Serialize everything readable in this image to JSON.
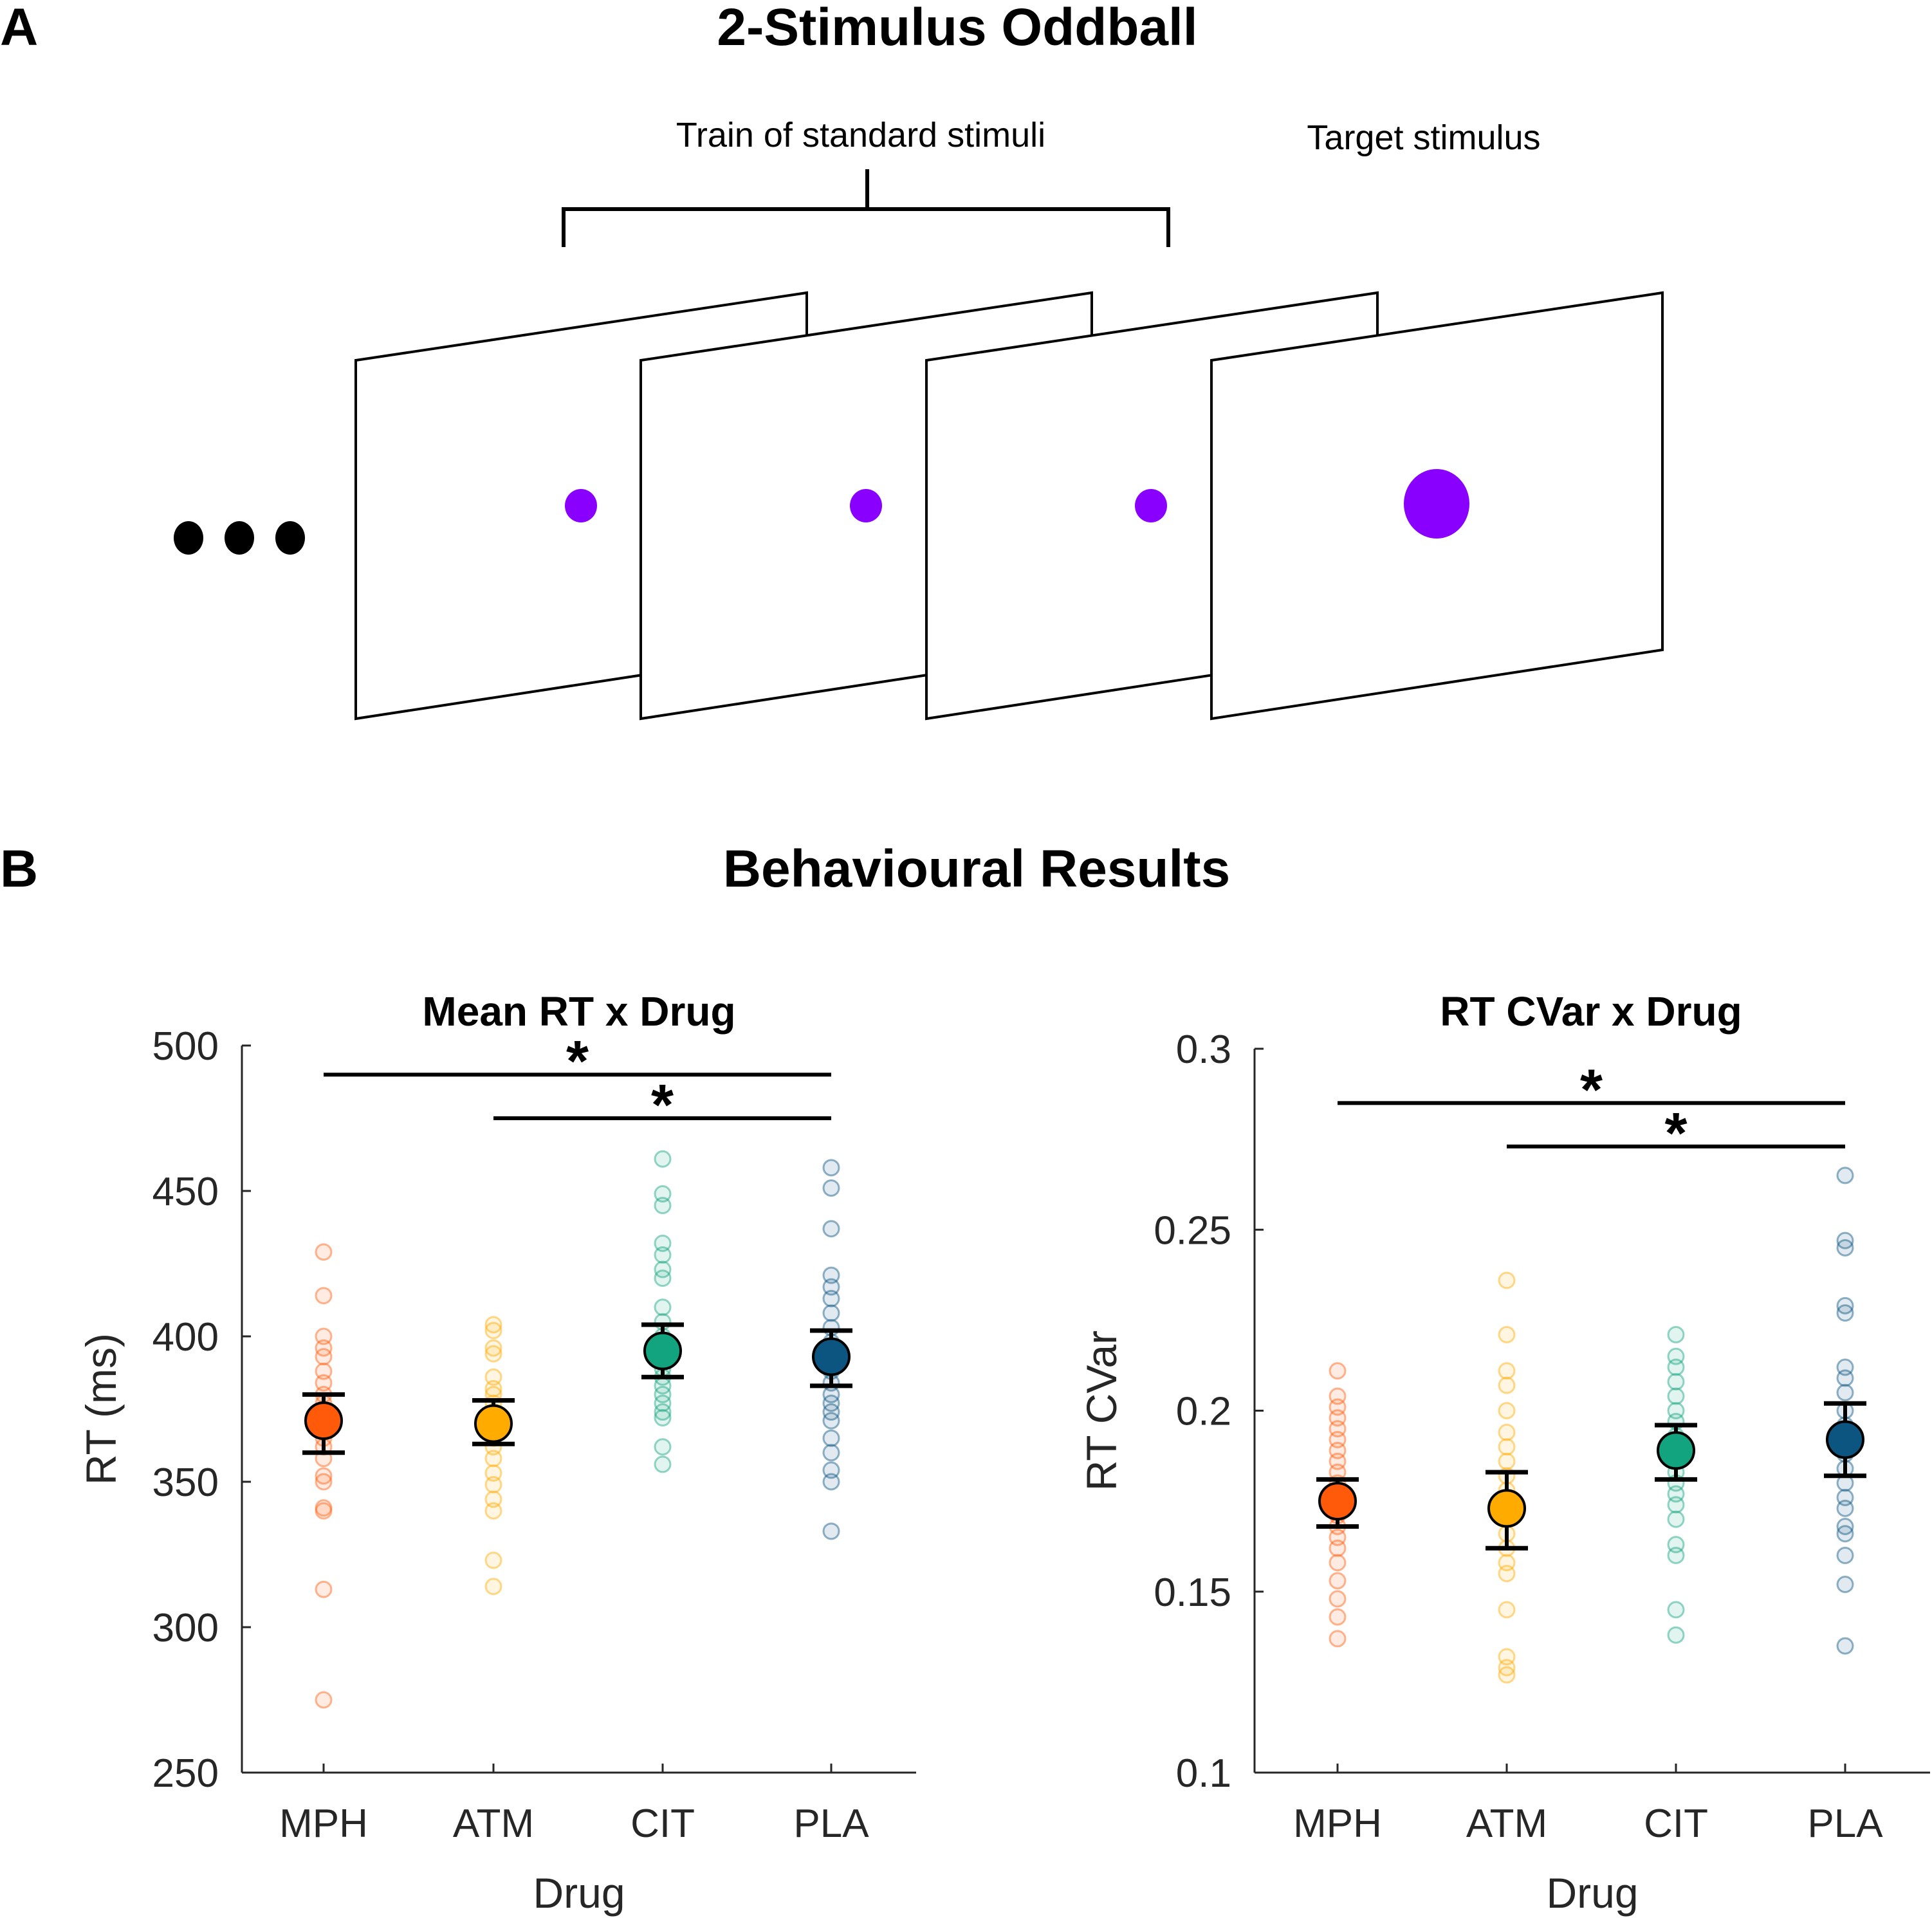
{
  "panel_a": {
    "letter": "A",
    "title": "2-Stimulus Oddball",
    "train_label": "Train of standard stimuli",
    "target_label": "Target stimulus",
    "stimulus_color": "#8a00ff"
  },
  "panel_b": {
    "letter": "B",
    "title": "Behavioural Results"
  },
  "chart_data": [
    {
      "type": "scatter",
      "title": "Mean RT x Drug",
      "xlabel": "Drug",
      "ylabel": "RT (ms)",
      "categories": [
        "MPH",
        "ATM",
        "CIT",
        "PLA"
      ],
      "ylim": [
        250,
        500
      ],
      "yticks": [
        250,
        300,
        350,
        400,
        450,
        500
      ],
      "colors": [
        "#ff5a0a",
        "#ffab00",
        "#12a37f",
        "#0b5580"
      ],
      "means": [
        371,
        370,
        395,
        393
      ],
      "error_bars": [
        [
          360,
          380
        ],
        [
          363,
          378
        ],
        [
          386,
          404
        ],
        [
          383,
          402
        ]
      ],
      "points": [
        [
          429,
          414,
          400,
          396,
          393,
          388,
          384,
          380,
          377,
          374,
          371,
          368,
          365,
          362,
          358,
          352,
          350,
          341,
          340,
          313,
          275
        ],
        [
          404,
          402,
          396,
          394,
          386,
          382,
          380,
          377,
          374,
          371,
          368,
          365,
          362,
          358,
          353,
          349,
          344,
          340,
          323,
          314
        ],
        [
          461,
          449,
          445,
          432,
          428,
          423,
          420,
          410,
          405,
          400,
          396,
          392,
          389,
          386,
          383,
          380,
          377,
          374,
          372,
          362,
          356
        ],
        [
          458,
          451,
          437,
          421,
          417,
          413,
          408,
          403,
          398,
          392,
          388,
          384,
          380,
          377,
          374,
          371,
          365,
          360,
          354,
          350,
          333
        ]
      ],
      "significance": [
        {
          "from": "MPH",
          "to": "PLA",
          "y": 490,
          "label": "*"
        },
        {
          "from": "ATM",
          "to": "PLA",
          "y": 475,
          "label": "*"
        }
      ]
    },
    {
      "type": "scatter",
      "title": "RT CVar x Drug",
      "xlabel": "Drug",
      "ylabel": "RT CVar",
      "categories": [
        "MPH",
        "ATM",
        "CIT",
        "PLA"
      ],
      "ylim": [
        0.1,
        0.3
      ],
      "yticks": [
        0.1,
        0.15,
        0.2,
        0.25,
        0.3
      ],
      "ytick_labels": [
        "0.1",
        "0.15",
        "0.2",
        "0.25",
        "0.3"
      ],
      "colors": [
        "#ff5a0a",
        "#ffab00",
        "#12a37f",
        "#0b5580"
      ],
      "means": [
        0.175,
        0.173,
        0.189,
        0.192
      ],
      "error_bars": [
        [
          0.168,
          0.181
        ],
        [
          0.162,
          0.183
        ],
        [
          0.181,
          0.196
        ],
        [
          0.182,
          0.202
        ]
      ],
      "points": [
        [
          0.211,
          0.204,
          0.201,
          0.198,
          0.195,
          0.192,
          0.189,
          0.186,
          0.183,
          0.18,
          0.177,
          0.174,
          0.171,
          0.168,
          0.165,
          0.162,
          0.158,
          0.153,
          0.148,
          0.143,
          0.137
        ],
        [
          0.236,
          0.221,
          0.211,
          0.207,
          0.2,
          0.194,
          0.19,
          0.186,
          0.182,
          0.178,
          0.174,
          0.17,
          0.166,
          0.162,
          0.158,
          0.155,
          0.145,
          0.132,
          0.129,
          0.127
        ],
        [
          0.221,
          0.215,
          0.212,
          0.208,
          0.204,
          0.2,
          0.197,
          0.193,
          0.19,
          0.186,
          0.183,
          0.18,
          0.177,
          0.174,
          0.17,
          0.163,
          0.16,
          0.145,
          0.138
        ],
        [
          0.265,
          0.247,
          0.245,
          0.229,
          0.227,
          0.212,
          0.209,
          0.205,
          0.2,
          0.196,
          0.192,
          0.188,
          0.184,
          0.18,
          0.176,
          0.173,
          0.168,
          0.166,
          0.16,
          0.152,
          0.135
        ]
      ],
      "significance": [
        {
          "from": "MPH",
          "to": "PLA",
          "y": 0.285,
          "label": "*"
        },
        {
          "from": "ATM",
          "to": "PLA",
          "y": 0.273,
          "label": "*"
        }
      ]
    }
  ]
}
